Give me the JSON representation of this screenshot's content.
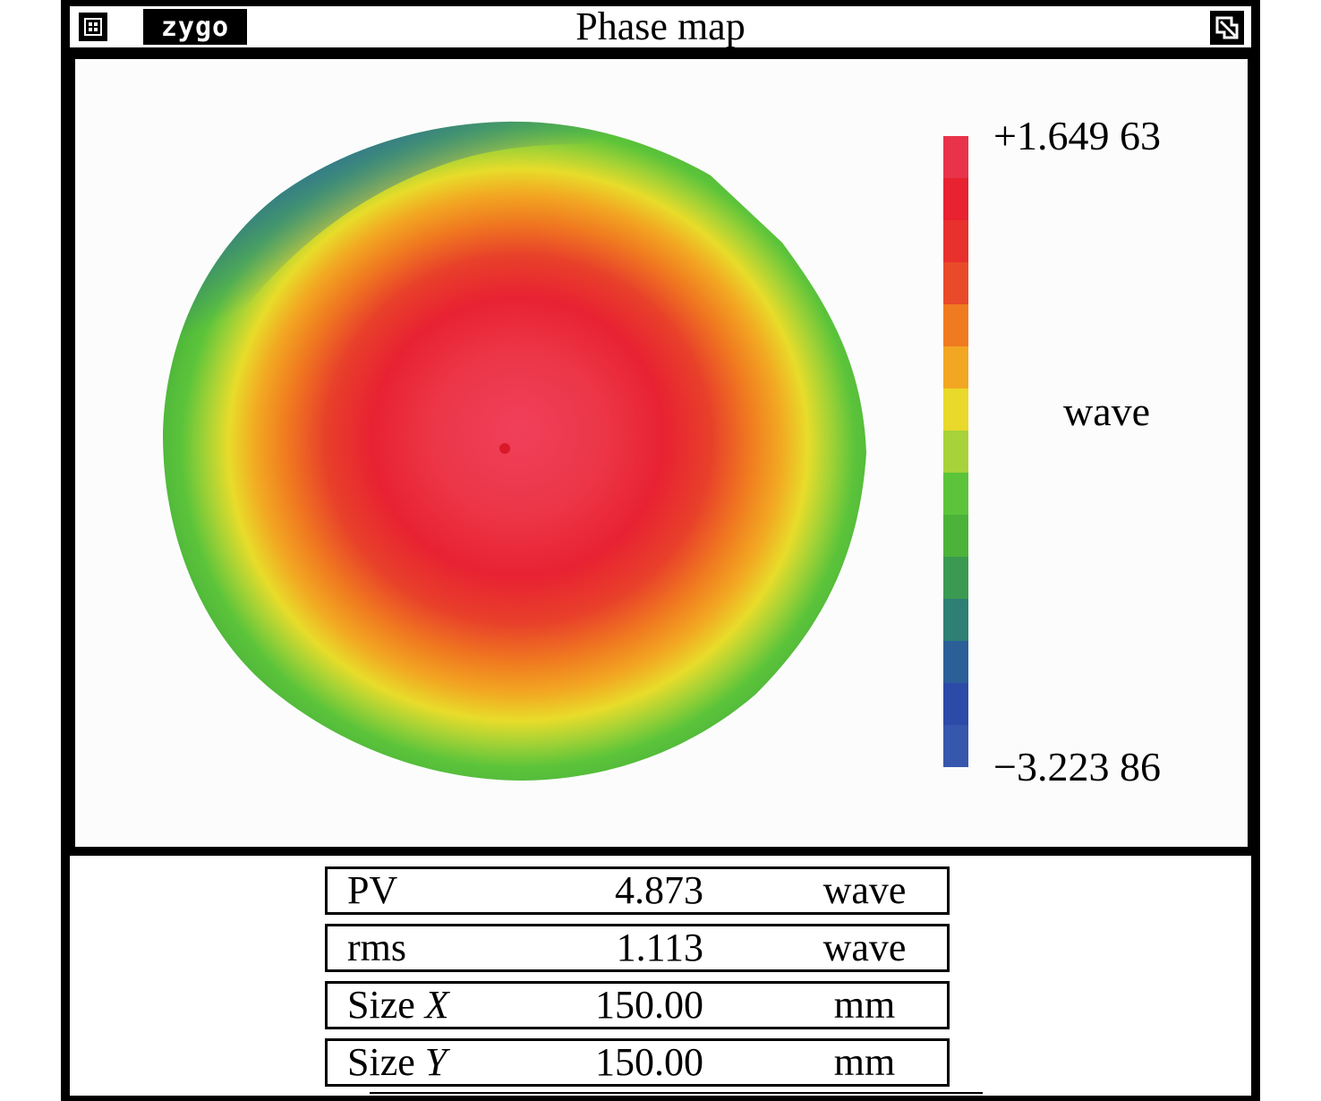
{
  "window": {
    "title": "Phase map",
    "logo_text": "zygo",
    "sysmenu_icon": "system-menu-icon",
    "resize_icon": "resize-corner-icon"
  },
  "map": {
    "colorbar_colors": [
      "#e8334a",
      "#e82230",
      "#e8302c",
      "#e84a2a",
      "#f07a20",
      "#f2a622",
      "#e8d92a",
      "#a8d23a",
      "#5cc43a",
      "#4bb33a",
      "#3b9a52",
      "#2e7f74",
      "#2c5f98",
      "#2c4aa8",
      "#3657ad"
    ],
    "scale_max": "+1.649 63",
    "scale_min": "−3.223 86",
    "unit": "wave"
  },
  "stats": [
    {
      "label": "PV",
      "label_italic": "",
      "value": "4.873",
      "unit": "wave"
    },
    {
      "label": "rms",
      "label_italic": "",
      "value": "1.113",
      "unit": "wave"
    },
    {
      "label": "Size ",
      "label_italic": "X",
      "value": "150.00",
      "unit": "mm"
    },
    {
      "label": "Size ",
      "label_italic": "Y",
      "value": "150.00",
      "unit": "mm"
    }
  ]
}
